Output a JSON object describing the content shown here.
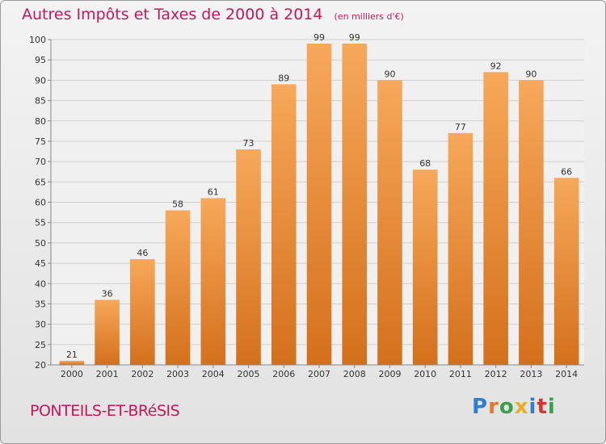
{
  "header": {
    "title": "Autres Impôts et Taxes de 2000 à 2014",
    "subtitle": "(en milliers d'€)"
  },
  "footer": {
    "commune": "PONTEILS-ET-BRéSIS",
    "brand": "Proxiti",
    "brand_letters": [
      {
        "ch": "P",
        "color": "#2f7fd0"
      },
      {
        "ch": "r",
        "color": "#e8772e"
      },
      {
        "ch": "o",
        "color": "#3aa04a"
      },
      {
        "ch": "x",
        "color": "#e8b020"
      },
      {
        "ch": "i",
        "color": "#2f7fd0"
      },
      {
        "ch": "t",
        "color": "#d9342b"
      },
      {
        "ch": "i",
        "color": "#3aa04a"
      }
    ]
  },
  "chart_data": {
    "type": "bar",
    "title": "Autres Impôts et Taxes de 2000 à 2014",
    "unit": "(en milliers d'€)",
    "categories": [
      "2000",
      "2001",
      "2002",
      "2003",
      "2004",
      "2005",
      "2006",
      "2007",
      "2008",
      "2009",
      "2010",
      "2011",
      "2012",
      "2013",
      "2014"
    ],
    "values": [
      21,
      36,
      46,
      58,
      61,
      73,
      89,
      99,
      99,
      90,
      68,
      77,
      92,
      90,
      66
    ],
    "ylim": [
      20,
      100
    ],
    "yticks": [
      20,
      25,
      30,
      35,
      40,
      45,
      50,
      55,
      60,
      65,
      70,
      75,
      80,
      85,
      90,
      95,
      100
    ],
    "grid": true,
    "xlabel": "",
    "ylabel": "",
    "colors": {
      "bar_top": "#f7a85a",
      "bar_bottom": "#d4701c",
      "text": "#333333",
      "grid": "#cfcfcf",
      "accent": "#c2185b"
    }
  }
}
